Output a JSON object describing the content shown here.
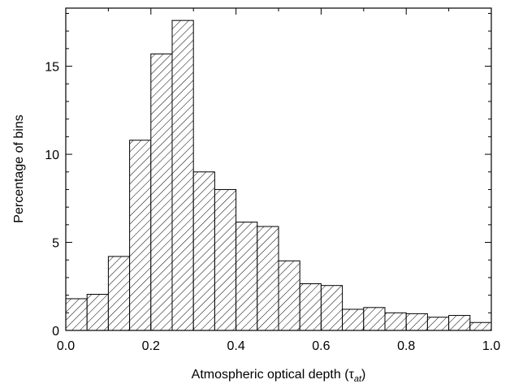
{
  "chart_data": {
    "type": "bar",
    "xlabel": "Atmospheric optical depth (",
    "xlabel_symbol": "τ",
    "xlabel_subscript": "at",
    "xlabel_close": ")",
    "ylabel": "Percentage of bins",
    "xlim": [
      0.0,
      1.0
    ],
    "ylim": [
      0,
      18.3
    ],
    "bin_width": 0.05,
    "bin_starts": [
      0.0,
      0.05,
      0.1,
      0.15,
      0.2,
      0.25,
      0.3,
      0.35,
      0.4,
      0.45,
      0.5,
      0.55,
      0.6,
      0.65,
      0.7,
      0.75,
      0.8,
      0.85,
      0.9,
      0.95
    ],
    "values": [
      1.8,
      2.05,
      4.2,
      10.8,
      15.7,
      17.6,
      9.0,
      8.0,
      6.15,
      5.9,
      3.95,
      2.65,
      2.55,
      1.2,
      1.3,
      1.0,
      0.95,
      0.75,
      0.85,
      0.45
    ],
    "x_ticks": [
      0.0,
      0.2,
      0.4,
      0.6,
      0.8,
      1.0
    ],
    "x_tick_labels": [
      "0.0",
      "0.2",
      "0.4",
      "0.6",
      "0.8",
      "1.0"
    ],
    "y_ticks": [
      0,
      5,
      10,
      15
    ],
    "y_tick_labels": [
      "0",
      "5",
      "10",
      "15"
    ],
    "fill": "diagonal hatch",
    "grid": false
  }
}
